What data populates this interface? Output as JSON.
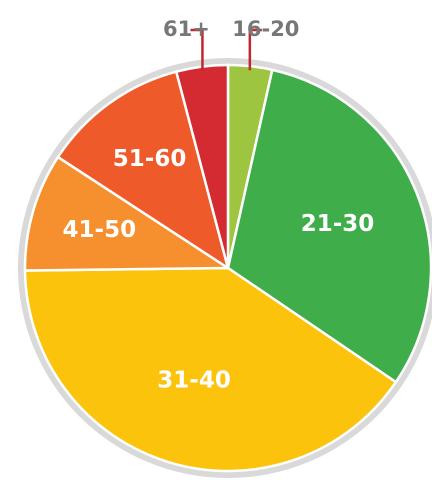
{
  "chart_data": {
    "type": "pie",
    "categories": [
      "16-20",
      "21-30",
      "31-40",
      "41-50",
      "51-60",
      "61+"
    ],
    "values": [
      3.5,
      31,
      40.3,
      9.4,
      11.7,
      4.1
    ],
    "colors": [
      "#9dc53f",
      "#3fae4a",
      "#fbc30b",
      "#f6902f",
      "#ef5a2b",
      "#d42a31"
    ],
    "start_angle": 0,
    "direction": "clockwise"
  }
}
